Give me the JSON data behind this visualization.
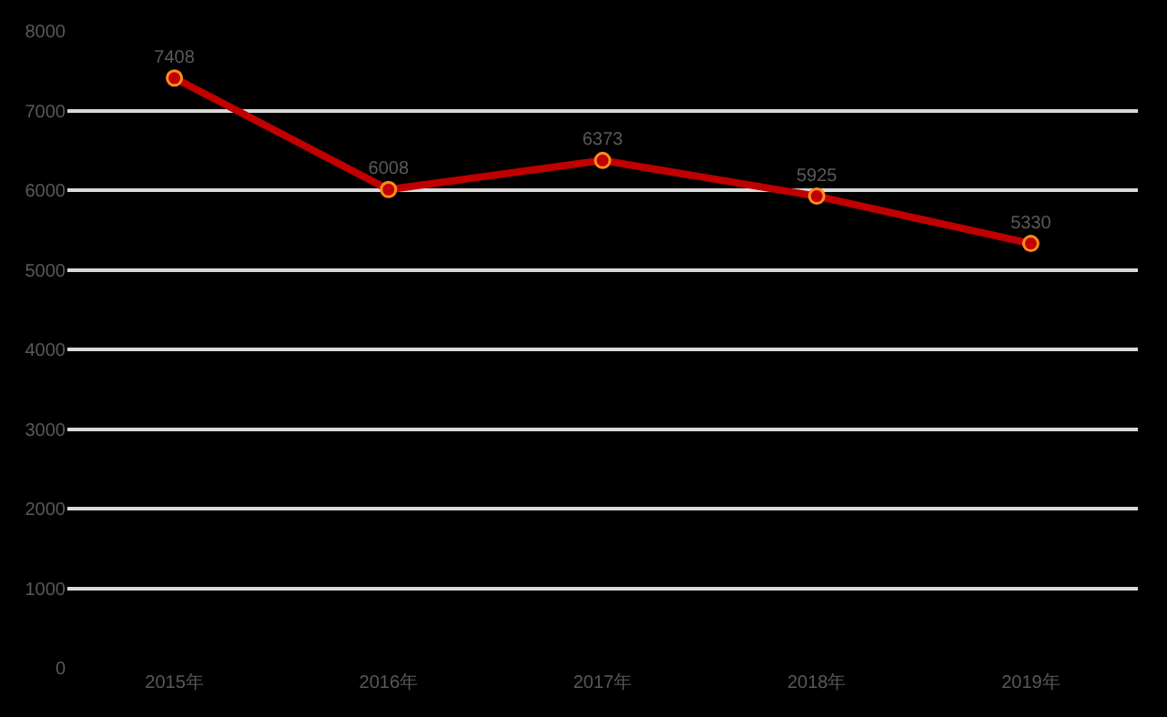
{
  "chart_data": {
    "type": "line",
    "categories": [
      "2015年",
      "2016年",
      "2017年",
      "2018年",
      "2019年"
    ],
    "series": [
      {
        "color": "#c00000",
        "values": [
          7408,
          6008,
          6373,
          5925,
          5330
        ]
      }
    ],
    "ylim": [
      0,
      8000
    ],
    "yticks": [
      0,
      1000,
      2000,
      3000,
      4000,
      5000,
      6000,
      7000,
      8000
    ],
    "grid": "y",
    "marker": "circle",
    "line_style": "solid",
    "data_labels": true,
    "legend": false
  }
}
